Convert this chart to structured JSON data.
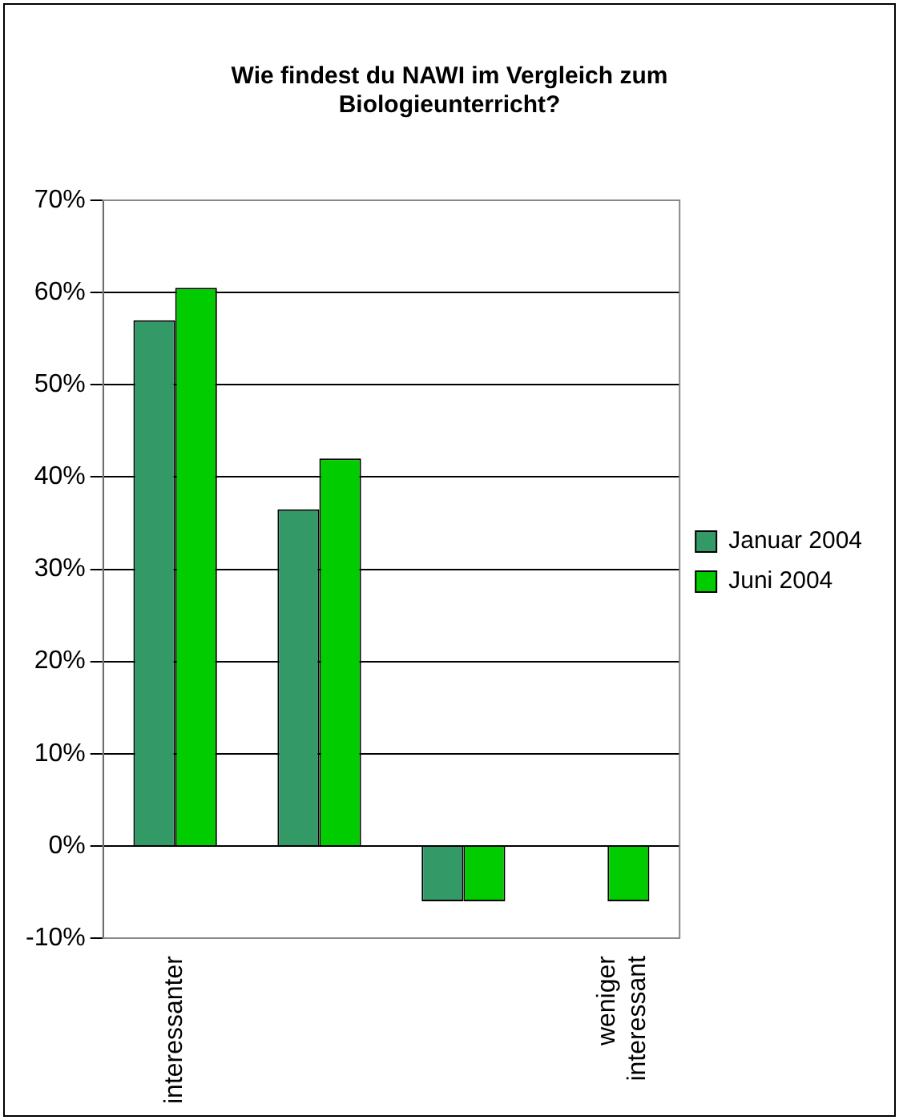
{
  "chart_data": {
    "type": "bar",
    "title": "Wie findest du NAWI im Vergleich zum Biologieunterricht?",
    "categories": [
      "interessanter",
      null,
      null,
      "weniger interessant"
    ],
    "series": [
      {
        "name": "Januar 2004",
        "color": "#339966",
        "values": [
          57,
          36.5,
          -6,
          0
        ]
      },
      {
        "name": "Juni 2004",
        "color": "#00cc00",
        "values": [
          60.5,
          42,
          -6,
          -6
        ]
      }
    ],
    "ylim": [
      -10,
      70
    ],
    "yticks": [
      {
        "value": -10,
        "label": "-10%"
      },
      {
        "value": 0,
        "label": "0%"
      },
      {
        "value": 10,
        "label": "10%"
      },
      {
        "value": 20,
        "label": "20%"
      },
      {
        "value": 30,
        "label": "30%"
      },
      {
        "value": 40,
        "label": "40%"
      },
      {
        "value": 50,
        "label": "50%"
      },
      {
        "value": 60,
        "label": "60%"
      },
      {
        "value": 70,
        "label": "70%"
      }
    ],
    "grid": "y",
    "legend": "right"
  }
}
